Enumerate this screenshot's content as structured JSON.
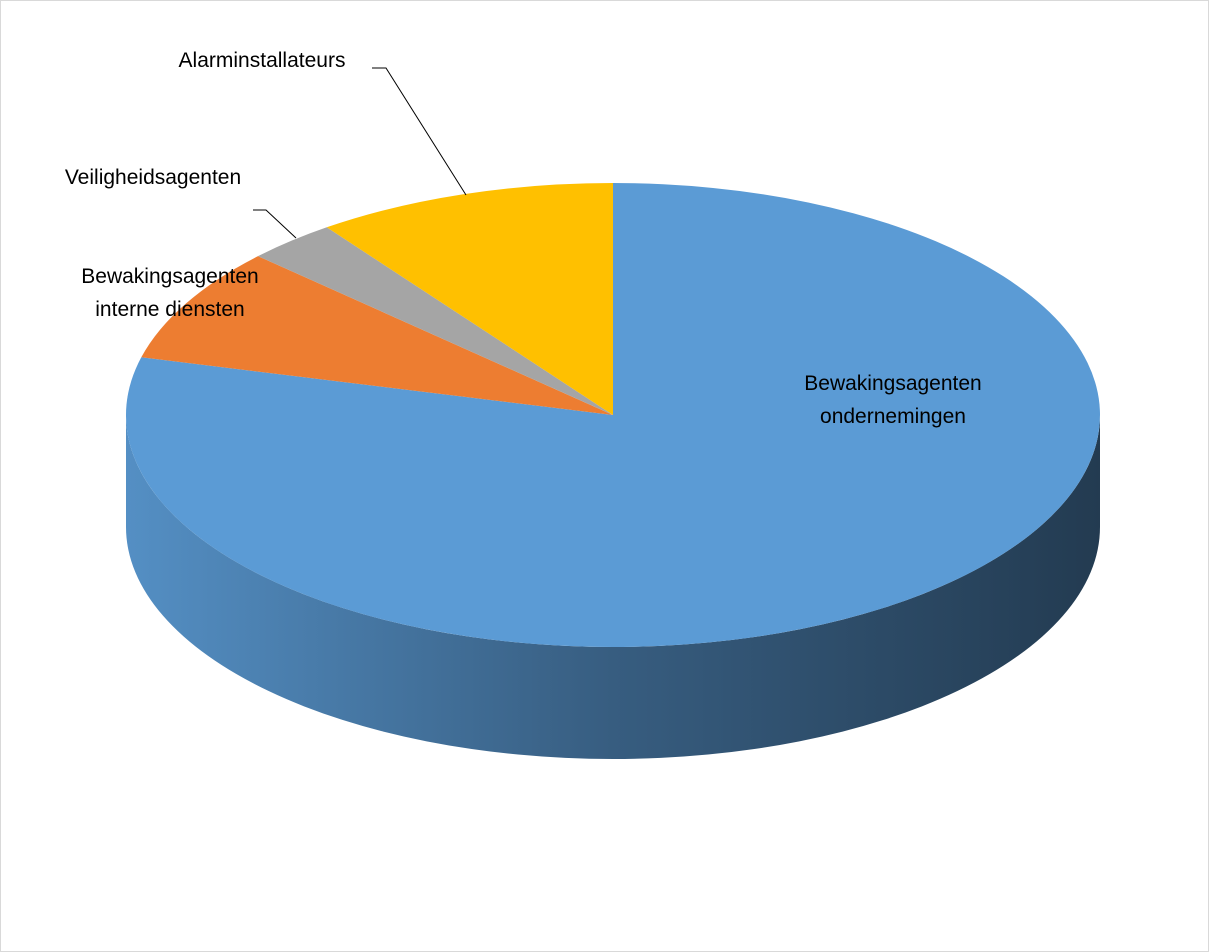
{
  "chart_data": {
    "type": "pie",
    "categories": [
      "Bewakingsagenten ondernemingen",
      "Bewakingsagenten interne diensten",
      "Veiligheidsagenten",
      "Alarminstallateurs"
    ],
    "values": [
      79,
      8,
      3,
      10
    ],
    "colors": [
      "#5b9bd5",
      "#ed7d31",
      "#a5a5a5",
      "#ffc000"
    ]
  }
}
